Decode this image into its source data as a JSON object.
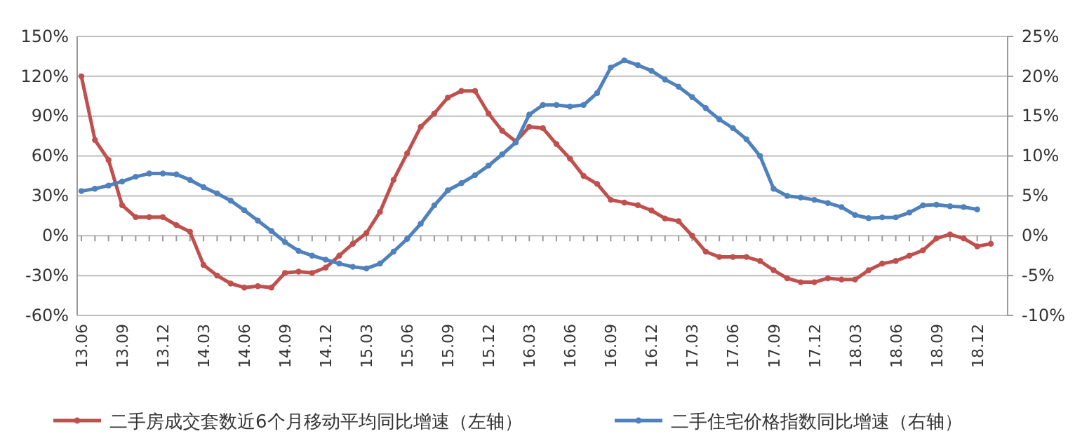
{
  "chart_data": {
    "type": "line",
    "categories": [
      "13.06",
      null,
      null,
      "13.09",
      null,
      null,
      "13.12",
      null,
      null,
      "14.03",
      null,
      null,
      "14.06",
      null,
      null,
      "14.09",
      null,
      null,
      "14.12",
      null,
      null,
      "15.03",
      null,
      null,
      "15.06",
      null,
      null,
      "15.09",
      null,
      null,
      "15.12",
      null,
      null,
      "16.03",
      null,
      null,
      "16.06",
      null,
      null,
      "16.09",
      null,
      null,
      "16.12",
      null,
      null,
      "17.03",
      null,
      null,
      "17.06",
      null,
      null,
      "17.09",
      null,
      null,
      "17.12",
      null,
      null,
      "18.03",
      null,
      null,
      "18.06",
      null,
      null,
      "18.09",
      null,
      null,
      "18.12",
      null
    ],
    "series": [
      {
        "name": "二手房成交套数近6个月移动平均同比增速（左轴）",
        "color": "#c0504d",
        "values": [
          120,
          72,
          57,
          23,
          14,
          14,
          14,
          8,
          3,
          -22,
          -30,
          -36,
          -39,
          -38,
          -39,
          -28,
          -27,
          -28,
          -24,
          -15,
          -6,
          2,
          18,
          42,
          62,
          82,
          92,
          104,
          109,
          109,
          92,
          79,
          71,
          82,
          81,
          69,
          58,
          45,
          39,
          27,
          25,
          23,
          19,
          13,
          11,
          0,
          -12,
          -16,
          -16,
          -16,
          -19,
          -26,
          -32,
          -35,
          -35,
          -32,
          -33,
          -33,
          -26,
          -21,
          -19,
          -15,
          -11,
          -2,
          1,
          -2,
          -8,
          -6
        ]
      },
      {
        "name": "二手住宅价格指数同比增速（右轴）",
        "color": "#4f81bd",
        "axis": "y2",
        "values": [
          5.6,
          5.9,
          6.3,
          6.8,
          7.4,
          7.8,
          7.8,
          7.7,
          7.0,
          6.1,
          5.3,
          4.4,
          3.2,
          1.9,
          0.6,
          -0.8,
          -1.9,
          -2.5,
          -3.0,
          -3.5,
          -3.9,
          -4.1,
          -3.5,
          -2.0,
          -0.4,
          1.5,
          3.8,
          5.7,
          6.6,
          7.6,
          8.8,
          10.2,
          11.7,
          15.2,
          16.4,
          16.4,
          16.2,
          16.4,
          17.9,
          21.1,
          22.0,
          21.4,
          20.7,
          19.6,
          18.7,
          17.4,
          16.0,
          14.6,
          13.5,
          12.1,
          10.0,
          5.9,
          5.0,
          4.8,
          4.5,
          4.1,
          3.6,
          2.6,
          2.2,
          2.3,
          2.3,
          2.9,
          3.8,
          3.9,
          3.7,
          3.6,
          3.3,
          null
        ]
      }
    ],
    "ylim": [
      -60,
      150
    ],
    "yticks": [
      {
        "value": -60,
        "label": "-60%"
      },
      {
        "value": -30,
        "label": "-30%"
      },
      {
        "value": 0,
        "label": "0%"
      },
      {
        "value": 30,
        "label": "30%"
      },
      {
        "value": 60,
        "label": "60%"
      },
      {
        "value": 90,
        "label": "90%"
      },
      {
        "value": 120,
        "label": "120%"
      },
      {
        "value": 150,
        "label": "150%"
      }
    ],
    "y2lim": [
      -10,
      25
    ],
    "y2ticks": [
      {
        "value": -10,
        "label": "-10%"
      },
      {
        "value": -5,
        "label": "-5%"
      },
      {
        "value": 0,
        "label": "0%"
      },
      {
        "value": 5,
        "label": "5%"
      },
      {
        "value": 10,
        "label": "10%"
      },
      {
        "value": 15,
        "label": "15%"
      },
      {
        "value": 20,
        "label": "20%"
      },
      {
        "value": 25,
        "label": "25%"
      }
    ],
    "grid": "y",
    "legend": "bottom",
    "marker": "circle",
    "line_style": "solid"
  }
}
